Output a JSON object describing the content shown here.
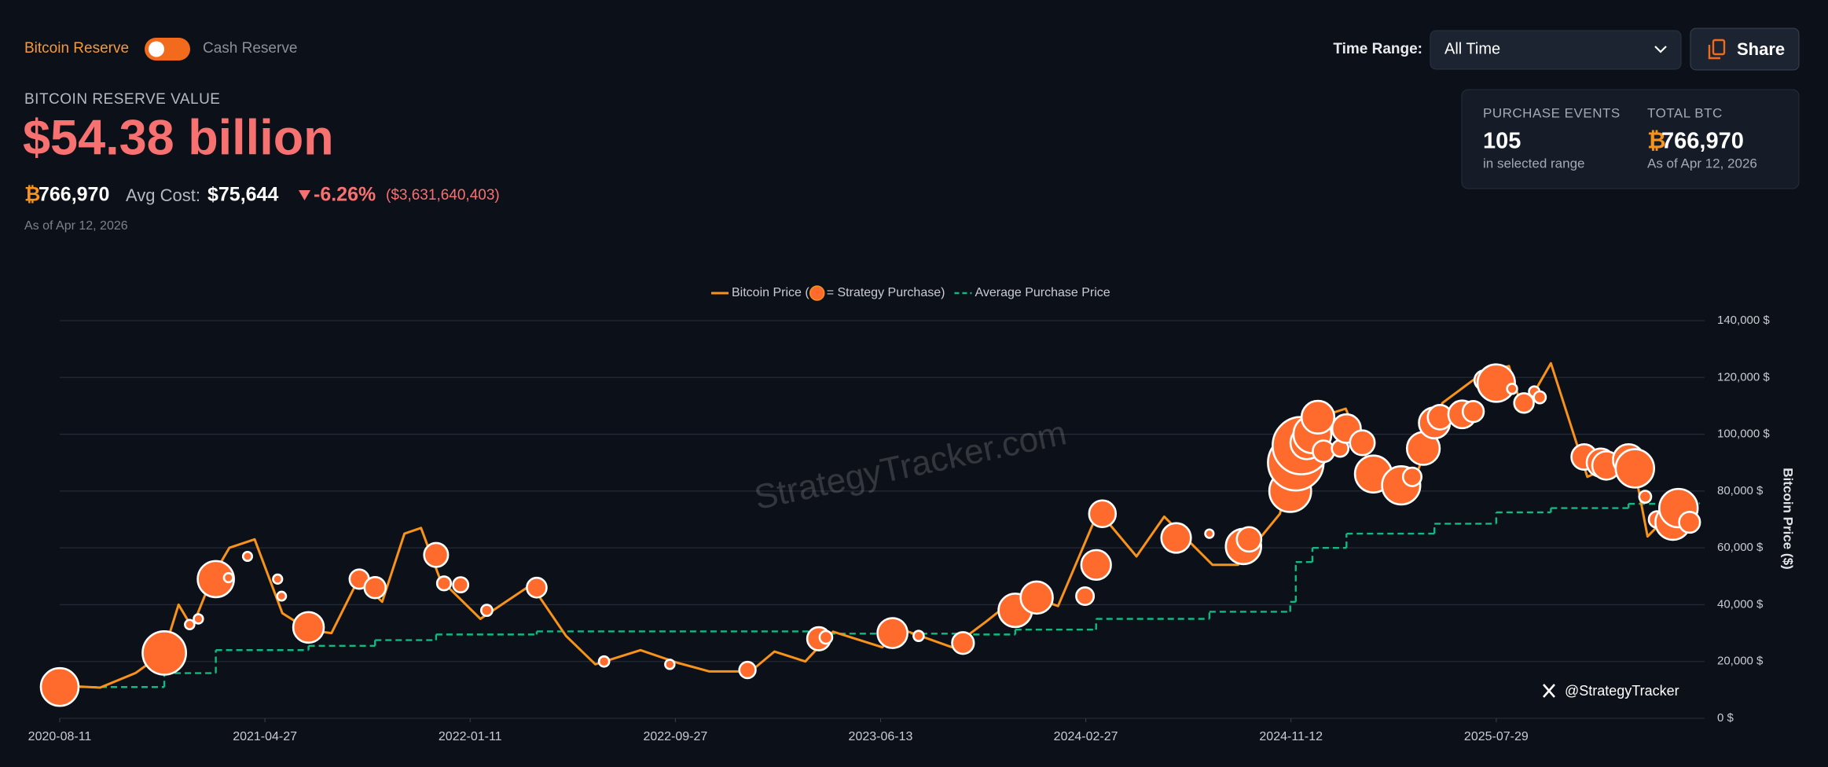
{
  "header": {
    "toggle_left": "Bitcoin Reserve",
    "toggle_right": "Cash Reserve",
    "time_range_label": "Time Range:",
    "time_range_value": "All Time",
    "share": "Share"
  },
  "reserve": {
    "label": "BITCOIN RESERVE VALUE",
    "value": "$54.38 billion",
    "btc_symbol": "₿",
    "btc": "766,970",
    "avg_cost_label": "Avg Cost:",
    "avg_cost": "$75,644",
    "change": "-6.26%",
    "change_amount": "($3,631,640,403)",
    "as_of": "As of Apr 12, 2026"
  },
  "stats": {
    "events_label": "PURCHASE EVENTS",
    "events": "105",
    "events_note": "in selected range",
    "total_label": "TOTAL BTC",
    "total": "766,970",
    "total_note": "As of Apr 12, 2026"
  },
  "chart_data": {
    "type": "line",
    "y_axis_label": "Bitcoin Price ($)",
    "watermark": "StrategyTracker.com",
    "handle": "@StrategyTracker",
    "grid": true,
    "xlim": [
      "2020-08-11",
      "2026-04-18"
    ],
    "xticks": [
      "2020-08-11",
      "2021-04-27",
      "2022-01-11",
      "2022-09-27",
      "2023-06-13",
      "2024-02-27",
      "2024-11-12",
      "2025-07-29"
    ],
    "ylim": [
      0,
      140000
    ],
    "yticks": [
      {
        "value": 0,
        "label": "0 $"
      },
      {
        "value": 20000,
        "label": "20,000 $"
      },
      {
        "value": 40000,
        "label": "40,000 $"
      },
      {
        "value": 60000,
        "label": "60,000 $"
      },
      {
        "value": 80000,
        "label": "80,000 $"
      },
      {
        "value": 100000,
        "label": "100,000 $"
      },
      {
        "value": 120000,
        "label": "120,000 $"
      },
      {
        "value": 140000,
        "label": "140,000 $"
      }
    ],
    "series": [
      {
        "name": "Bitcoin Price (",
        "color": "#f7931a",
        "x": [
          "2020-08-11",
          "2020-10-01",
          "2020-11-15",
          "2020-12-20",
          "2021-01-08",
          "2021-01-25",
          "2021-02-20",
          "2021-03-13",
          "2021-04-14",
          "2021-05-19",
          "2021-06-22",
          "2021-07-20",
          "2021-08-23",
          "2021-09-22",
          "2021-10-20",
          "2021-11-10",
          "2021-12-04",
          "2022-01-24",
          "2022-03-29",
          "2022-05-12",
          "2022-06-18",
          "2022-08-14",
          "2022-09-30",
          "2022-11-09",
          "2022-12-31",
          "2023-01-30",
          "2023-03-10",
          "2023-04-14",
          "2023-06-15",
          "2023-07-13",
          "2023-09-11",
          "2023-10-24",
          "2023-12-08",
          "2024-01-23",
          "2024-03-14",
          "2024-05-01",
          "2024-06-05",
          "2024-08-05",
          "2024-09-06",
          "2024-10-29",
          "2024-11-22",
          "2024-12-17",
          "2025-01-20",
          "2025-02-27",
          "2025-04-08",
          "2025-05-22",
          "2025-07-14",
          "2025-08-14",
          "2025-09-01",
          "2025-10-06",
          "2025-11-21",
          "2025-12-15",
          "2026-01-14",
          "2026-02-05",
          "2026-03-05",
          "2026-04-12"
        ],
        "values": [
          11500,
          10800,
          16000,
          23000,
          40000,
          32000,
          50000,
          60000,
          63000,
          37000,
          31000,
          30000,
          49000,
          41000,
          65000,
          67000,
          49000,
          35000,
          47000,
          29000,
          19000,
          24000,
          19500,
          16500,
          16500,
          23500,
          20000,
          30500,
          25000,
          31000,
          25000,
          34000,
          44000,
          39500,
          73000,
          57000,
          71000,
          54000,
          54000,
          72000,
          98000,
          106000,
          109000,
          84000,
          77000,
          111000,
          122000,
          124000,
          108000,
          125000,
          85000,
          88000,
          96000,
          64000,
          72000,
          69000
        ]
      },
      {
        "name": "Average Purchase Price",
        "color": "#10b981",
        "x": [
          "2020-08-11",
          "2020-12-21",
          "2021-02-24",
          "2021-06-21",
          "2021-09-13",
          "2021-11-29",
          "2022-04-05",
          "2023-03-27",
          "2023-09-25",
          "2023-11-30",
          "2024-03-11",
          "2024-08-01",
          "2024-11-11",
          "2024-11-18",
          "2024-12-09",
          "2025-01-21",
          "2025-05-12",
          "2025-07-29",
          "2025-10-06",
          "2026-01-12",
          "2026-03-16"
        ],
        "values": [
          11000,
          15900,
          24000,
          25500,
          27500,
          29500,
          30600,
          29800,
          29500,
          31200,
          35000,
          37500,
          41000,
          55000,
          60000,
          65000,
          68500,
          72500,
          74000,
          75500,
          75644
        ]
      },
      {
        "name": "= Strategy Purchase)",
        "type": "bubble",
        "color": "#ff6b2c",
        "x": [
          "2020-08-11",
          "2020-12-21",
          "2021-01-22",
          "2021-02-02",
          "2021-02-24",
          "2021-03-12",
          "2021-04-05",
          "2021-05-13",
          "2021-05-18",
          "2021-06-21",
          "2021-08-24",
          "2021-09-13",
          "2021-11-29",
          "2021-12-09",
          "2021-12-30",
          "2022-02-01",
          "2022-04-05",
          "2022-06-29",
          "2022-09-20",
          "2022-12-27",
          "2023-03-27",
          "2023-04-05",
          "2023-06-28",
          "2023-07-31",
          "2023-09-25",
          "2023-11-30",
          "2023-12-27",
          "2024-02-26",
          "2024-03-11",
          "2024-03-19",
          "2024-06-20",
          "2024-08-01",
          "2024-09-13",
          "2024-09-20",
          "2024-11-11",
          "2024-11-18",
          "2024-11-25",
          "2024-12-02",
          "2024-12-09",
          "2024-12-16",
          "2024-12-23",
          "2025-01-13",
          "2025-01-21",
          "2025-02-10",
          "2025-02-24",
          "2025-03-31",
          "2025-04-14",
          "2025-04-28",
          "2025-05-12",
          "2025-05-19",
          "2025-06-16",
          "2025-06-30",
          "2025-07-14",
          "2025-07-29",
          "2025-08-18",
          "2025-09-02",
          "2025-09-15",
          "2025-09-22",
          "2025-11-17",
          "2025-12-08",
          "2025-12-15",
          "2026-01-12",
          "2026-01-20",
          "2026-02-02",
          "2026-02-17",
          "2026-03-02",
          "2026-03-09",
          "2026-03-16",
          "2026-03-30"
        ],
        "values": [
          11000,
          23000,
          33000,
          35000,
          49000,
          49500,
          57000,
          49000,
          43000,
          32000,
          49000,
          46000,
          57500,
          47500,
          47000,
          38000,
          46000,
          20000,
          19000,
          17000,
          28000,
          28500,
          30000,
          29000,
          26500,
          38000,
          42500,
          43000,
          54000,
          72000,
          63500,
          65000,
          60500,
          63000,
          80000,
          90000,
          96000,
          97000,
          100000,
          106000,
          94000,
          95000,
          102000,
          97000,
          86000,
          82000,
          85000,
          95000,
          104000,
          106000,
          107000,
          108000,
          119000,
          118000,
          116000,
          111000,
          115000,
          113000,
          92000,
          90000,
          89000,
          91000,
          88000,
          78000,
          70000,
          67000,
          69000,
          74000,
          69000
        ],
        "sizes": [
          21454,
          29646,
          314,
          295,
          19452,
          262,
          253,
          271,
          229,
          13005,
          3907,
          5050,
          7002,
          1434,
          1914,
          660,
          4167,
          480,
          301,
          2395,
          6455,
          1045,
          12333,
          467,
          5445,
          16130,
          14620,
          3000,
          12000,
          9245,
          11931,
          169,
          18300,
          7420,
          27200,
          51780,
          55500,
          15400,
          21550,
          15350,
          5262,
          2530,
          11000,
          7633,
          20356,
          22048,
          3459,
          15355,
          13390,
          7390,
          10100,
          4980,
          4225,
          21021,
          430,
          4048,
          525,
          850,
          8178,
          10624,
          10645,
          13627,
          22305,
          855,
          2486,
          3015,
          17994,
          22337,
          4871
        ]
      }
    ]
  }
}
